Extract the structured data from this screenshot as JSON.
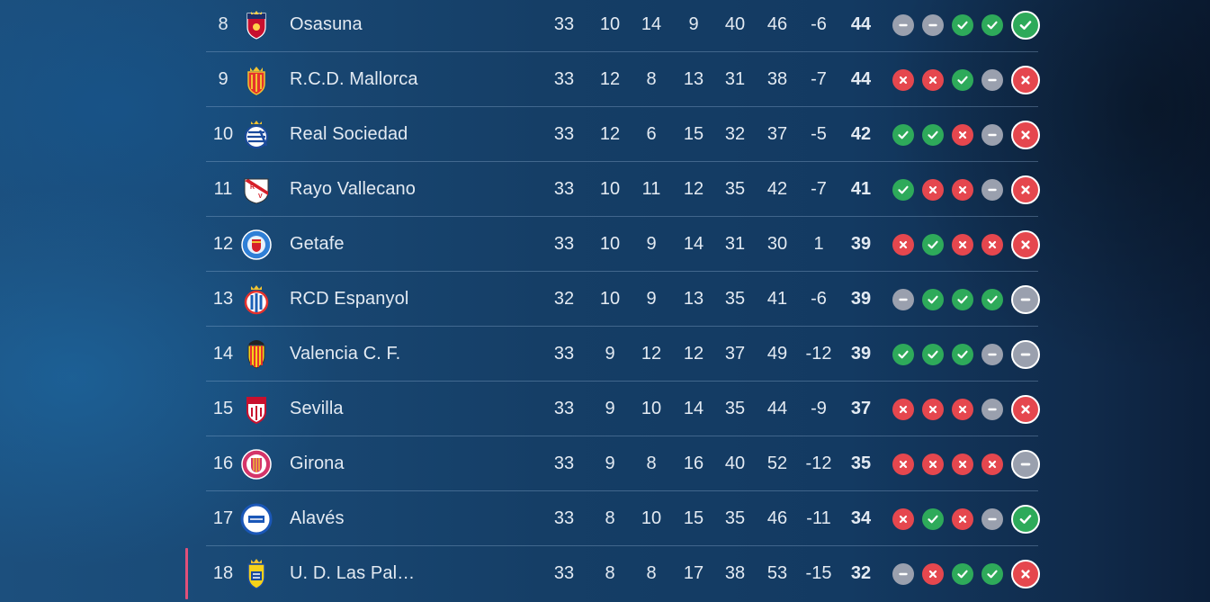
{
  "colors": {
    "win": "#2eaa5a",
    "loss": "#e5474e",
    "draw": "#9aa0ae",
    "relegation_marker": "#e0507a"
  },
  "rows": [
    {
      "pos": "8",
      "team": "Osasuna",
      "crest": "osasuna-crest-icon",
      "pj": "33",
      "g": "10",
      "e": "14",
      "p": "9",
      "gf": "40",
      "gc": "46",
      "dg": "-6",
      "pts": "44",
      "form": [
        "D",
        "D",
        "W",
        "W",
        "W"
      ]
    },
    {
      "pos": "9",
      "team": "R.C.D. Mallorca",
      "crest": "mallorca-crest-icon",
      "pj": "33",
      "g": "12",
      "e": "8",
      "p": "13",
      "gf": "31",
      "gc": "38",
      "dg": "-7",
      "pts": "44",
      "form": [
        "L",
        "L",
        "W",
        "D",
        "L"
      ]
    },
    {
      "pos": "10",
      "team": "Real Sociedad",
      "crest": "real-sociedad-crest-icon",
      "pj": "33",
      "g": "12",
      "e": "6",
      "p": "15",
      "gf": "32",
      "gc": "37",
      "dg": "-5",
      "pts": "42",
      "form": [
        "W",
        "W",
        "L",
        "D",
        "L"
      ]
    },
    {
      "pos": "11",
      "team": "Rayo Vallecano",
      "crest": "rayo-vallecano-crest-icon",
      "pj": "33",
      "g": "10",
      "e": "11",
      "p": "12",
      "gf": "35",
      "gc": "42",
      "dg": "-7",
      "pts": "41",
      "form": [
        "W",
        "L",
        "L",
        "D",
        "L"
      ]
    },
    {
      "pos": "12",
      "team": "Getafe",
      "crest": "getafe-crest-icon",
      "pj": "33",
      "g": "10",
      "e": "9",
      "p": "14",
      "gf": "31",
      "gc": "30",
      "dg": "1",
      "pts": "39",
      "form": [
        "L",
        "W",
        "L",
        "L",
        "L"
      ]
    },
    {
      "pos": "13",
      "team": "RCD Espanyol",
      "crest": "espanyol-crest-icon",
      "pj": "32",
      "g": "10",
      "e": "9",
      "p": "13",
      "gf": "35",
      "gc": "41",
      "dg": "-6",
      "pts": "39",
      "form": [
        "D",
        "W",
        "W",
        "W",
        "D"
      ]
    },
    {
      "pos": "14",
      "team": "Valencia C. F.",
      "crest": "valencia-crest-icon",
      "pj": "33",
      "g": "9",
      "e": "12",
      "p": "12",
      "gf": "37",
      "gc": "49",
      "dg": "-12",
      "pts": "39",
      "form": [
        "W",
        "W",
        "W",
        "D",
        "D"
      ]
    },
    {
      "pos": "15",
      "team": "Sevilla",
      "crest": "sevilla-crest-icon",
      "pj": "33",
      "g": "9",
      "e": "10",
      "p": "14",
      "gf": "35",
      "gc": "44",
      "dg": "-9",
      "pts": "37",
      "form": [
        "L",
        "L",
        "L",
        "D",
        "L"
      ]
    },
    {
      "pos": "16",
      "team": "Girona",
      "crest": "girona-crest-icon",
      "pj": "33",
      "g": "9",
      "e": "8",
      "p": "16",
      "gf": "40",
      "gc": "52",
      "dg": "-12",
      "pts": "35",
      "form": [
        "L",
        "L",
        "L",
        "L",
        "D"
      ]
    },
    {
      "pos": "17",
      "team": "Alavés",
      "crest": "alaves-crest-icon",
      "pj": "33",
      "g": "8",
      "e": "10",
      "p": "15",
      "gf": "35",
      "gc": "46",
      "dg": "-11",
      "pts": "34",
      "form": [
        "L",
        "W",
        "L",
        "D",
        "W"
      ]
    },
    {
      "pos": "18",
      "team": "U. D. Las Pal…",
      "crest": "las-palmas-crest-icon",
      "pj": "33",
      "g": "8",
      "e": "8",
      "p": "17",
      "gf": "38",
      "gc": "53",
      "dg": "-15",
      "pts": "32",
      "form": [
        "D",
        "L",
        "W",
        "W",
        "L"
      ],
      "zone": "relegation"
    }
  ]
}
